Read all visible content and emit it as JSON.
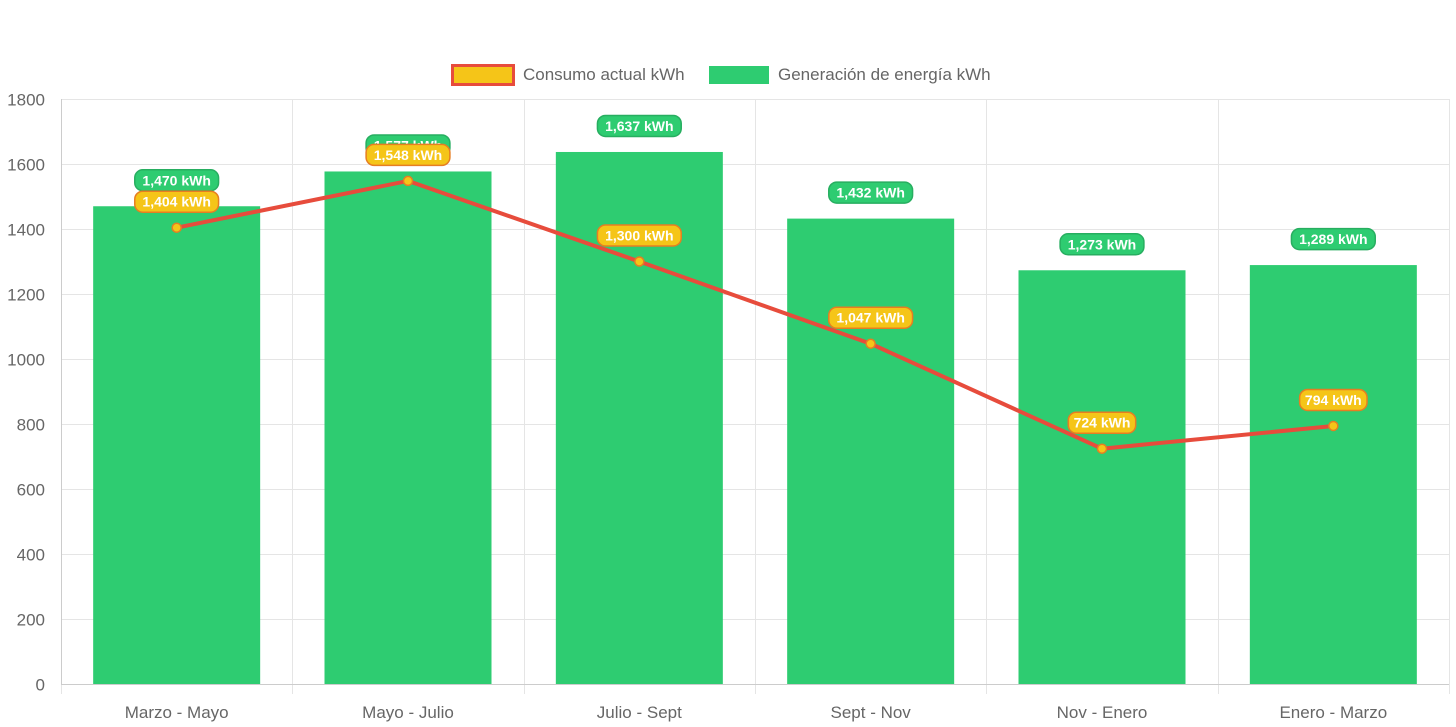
{
  "colors": {
    "bar_fill": "#2ecc71",
    "line_stroke": "#e74c3c",
    "point_fill": "#f5c518",
    "point_stroke": "#e67e22",
    "grid": "#e5e5e5",
    "axis_text": "#666666"
  },
  "chart_data": {
    "type": "bar",
    "title": "",
    "xlabel": "",
    "ylabel": "",
    "categories": [
      "Marzo - Mayo",
      "Mayo - Julio",
      "Julio - Sept",
      "Sept - Nov",
      "Nov - Enero",
      "Enero - Marzo"
    ],
    "ylim": [
      0,
      1800
    ],
    "yticks": [
      0,
      200,
      400,
      600,
      800,
      1000,
      1200,
      1400,
      1600,
      1800
    ],
    "grid": true,
    "legend_position": "top",
    "series": [
      {
        "name": "Consumo actual kWh",
        "type": "line",
        "values": [
          1404,
          1548,
          1300,
          1047,
          724,
          794
        ],
        "labels": [
          "1,404 kWh",
          "1,548 kWh",
          "1,300 kWh",
          "1,047 kWh",
          "724 kWh",
          "794 kWh"
        ]
      },
      {
        "name": "Generación de energía kWh",
        "type": "bar",
        "values": [
          1470,
          1577,
          1637,
          1432,
          1273,
          1289
        ],
        "labels": [
          "1,470 kWh",
          "1,577 kWh",
          "1,637 kWh",
          "1,432 kWh",
          "1,273 kWh",
          "1,289 kWh"
        ]
      }
    ]
  }
}
